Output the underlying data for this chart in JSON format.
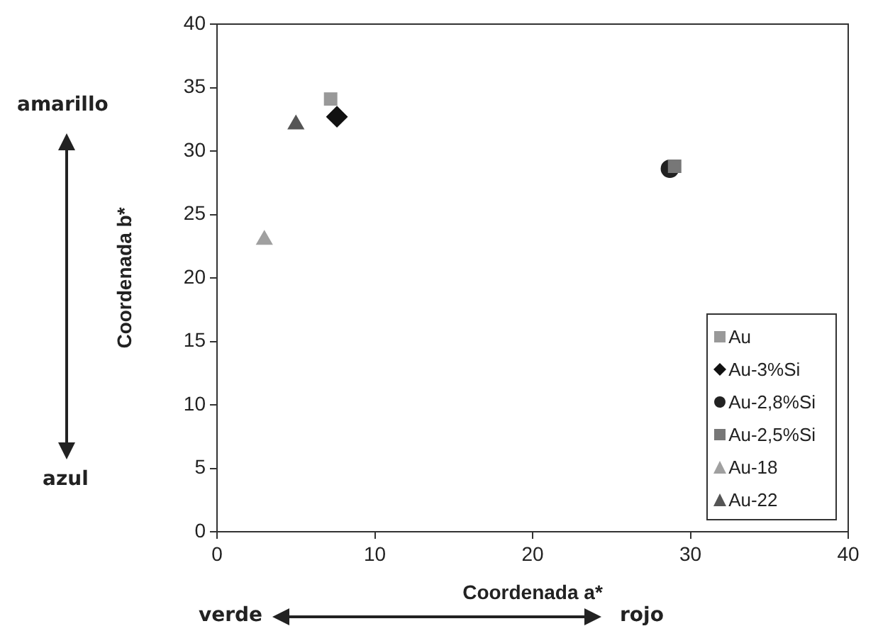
{
  "chart_data": {
    "type": "scatter",
    "xlabel": "Coordenada a*",
    "ylabel": "Coordenada b*",
    "xlim": [
      0,
      40
    ],
    "ylim": [
      0,
      40
    ],
    "xticks": [
      0,
      10,
      20,
      30,
      40
    ],
    "yticks": [
      0,
      5,
      10,
      15,
      20,
      25,
      30,
      35,
      40
    ],
    "grid": false,
    "legend": "bottom right",
    "annotations": [
      "amarillo",
      "azul",
      "verde",
      "rojo"
    ],
    "series": [
      {
        "name": "Au",
        "color": "#999999",
        "marker": "square",
        "x": [
          7.2
        ],
        "values": [
          34.1
        ]
      },
      {
        "name": "Au-3%Si",
        "color": "#111111",
        "marker": "diamond",
        "x": [
          7.6
        ],
        "values": [
          32.7
        ]
      },
      {
        "name": "Au-2,8%Si",
        "color": "#222222",
        "marker": "circle",
        "x": [
          28.7
        ],
        "values": [
          28.6
        ]
      },
      {
        "name": "Au-2,5%Si",
        "color": "#777777",
        "marker": "square",
        "x": [
          29.0
        ],
        "values": [
          28.8
        ]
      },
      {
        "name": "Au-18",
        "color": "#a0a0a0",
        "marker": "triangle",
        "x": [
          3.0
        ],
        "values": [
          23.0
        ]
      },
      {
        "name": "Au-22",
        "color": "#555555",
        "marker": "triangle",
        "x": [
          5.0
        ],
        "values": [
          32.1
        ]
      }
    ]
  }
}
